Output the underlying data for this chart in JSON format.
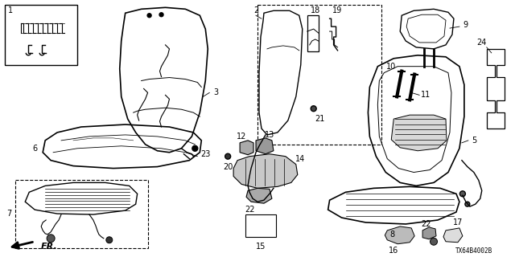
{
  "diagram_code": "TX64B4002B",
  "bg": "#ffffff",
  "lc": "#000000",
  "fig_w": 6.4,
  "fig_h": 3.2,
  "dpi": 100
}
